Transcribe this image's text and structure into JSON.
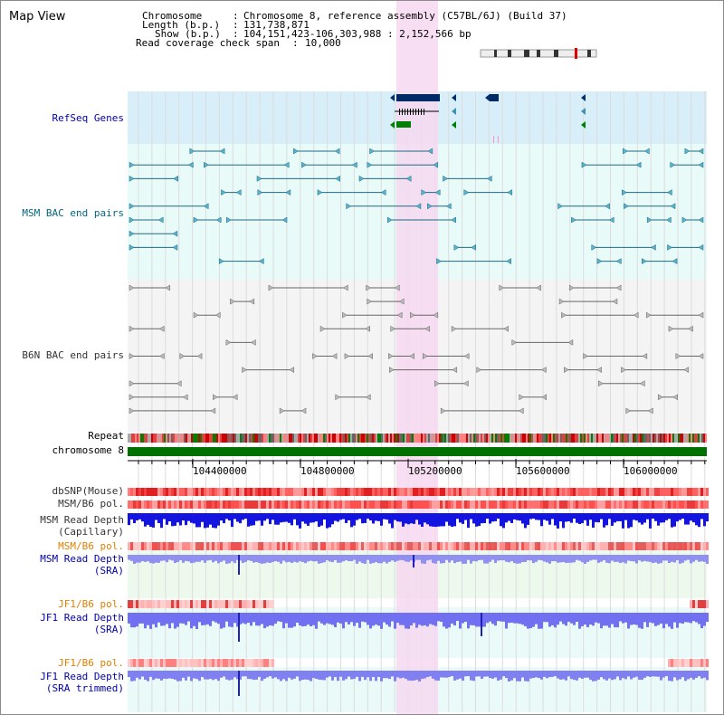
{
  "title": "Map View",
  "info": {
    "chromosome_label": "Chromosome",
    "chromosome_value": "Chromosome 8, reference assembly (C57BL/6J) (Build 37)",
    "length_label": "Length (b.p.)",
    "length_value": "131,738,871",
    "show_label": "Show (b.p.)",
    "show_value": "104,151,423-106,303,988 : 2,152,566 bp",
    "coverage_label": "Read coverage check span",
    "coverage_value": "10,000"
  },
  "tracks": {
    "refseq": "RefSeq Genes",
    "msm_bac": "MSM BAC end pairs",
    "b6n_bac": "B6N BAC end pairs",
    "repeat": "Repeat",
    "chromosome": "chromosome 8",
    "dbsnp": "dbSNP(Mouse)",
    "msm_b6_pol_1": "MSM/B6 pol.",
    "msm_depth_cap_1": "MSM Read Depth",
    "msm_depth_cap_2": "(Capillary)",
    "msm_b6_pol_2": "MSM/B6 pol.",
    "msm_depth_sra_1": "MSM Read Depth",
    "msm_depth_sra_2": "(SRA)",
    "jf1_b6_pol_1": "JF1/B6 pol.",
    "jf1_depth_sra_1": "JF1 Read Depth",
    "jf1_depth_sra_2": "(SRA)",
    "jf1_b6_pol_2": "JF1/B6 pol.",
    "jf1_depth_trim_1": "JF1 Read Depth",
    "jf1_depth_trim_2": "(SRA trimmed)"
  },
  "axis": {
    "ticks": [
      "104400000",
      "104800000",
      "105200000",
      "105600000",
      "106000000"
    ]
  },
  "colors": {
    "refseq_bg": "#d8eef8",
    "bac_bg": "#e8fbf8",
    "highlight": "#f6d8f0",
    "msm_label": "#006680",
    "b6n_label": "#333333",
    "blue_label": "#0000aa",
    "orange_label": "#e08000",
    "chromosome_bar": "#007000"
  }
}
